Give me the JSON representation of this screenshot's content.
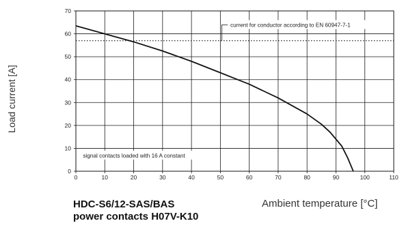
{
  "chart_data": {
    "type": "line",
    "title": "",
    "xlabel": "Ambient temperature [°C]",
    "ylabel": "Load current [A]",
    "xlim": [
      0,
      110
    ],
    "ylim": [
      0,
      70
    ],
    "x_ticks": [
      "0",
      "10",
      "20",
      "30",
      "40",
      "50",
      "60",
      "70",
      "80",
      "90",
      "100",
      "110"
    ],
    "y_ticks": [
      "0",
      "10",
      "20",
      "30",
      "40",
      "50",
      "60",
      "70"
    ],
    "grid": true,
    "series_title_lines": [
      "HDC-S6/12-SAS/BAS",
      "power contacts H07V-K10"
    ],
    "series": [
      {
        "name": "",
        "style": "solid",
        "color": "#111111",
        "x": [
          0,
          10,
          20,
          30,
          40,
          50,
          55,
          60,
          65,
          70,
          75,
          80,
          85,
          88,
          90,
          92,
          94,
          95,
          96
        ],
        "y": [
          63.5,
          60,
          56.5,
          52.5,
          48,
          43,
          40.5,
          38,
          35,
          32,
          28.5,
          25,
          20.5,
          17,
          14,
          11,
          6,
          3,
          0
        ]
      },
      {
        "name": "",
        "style": "dotted",
        "color": "#111111",
        "x": [
          0,
          110
        ],
        "y": [
          57,
          57
        ]
      }
    ],
    "annotations": [
      {
        "text": "current for conductor according to EN 60947-7-1",
        "x": 53,
        "y": 63,
        "leader_to": [
          50.5,
          57
        ]
      },
      {
        "text": "signal contacts loaded with 16 A constant",
        "x": 2,
        "y": 6
      }
    ]
  }
}
